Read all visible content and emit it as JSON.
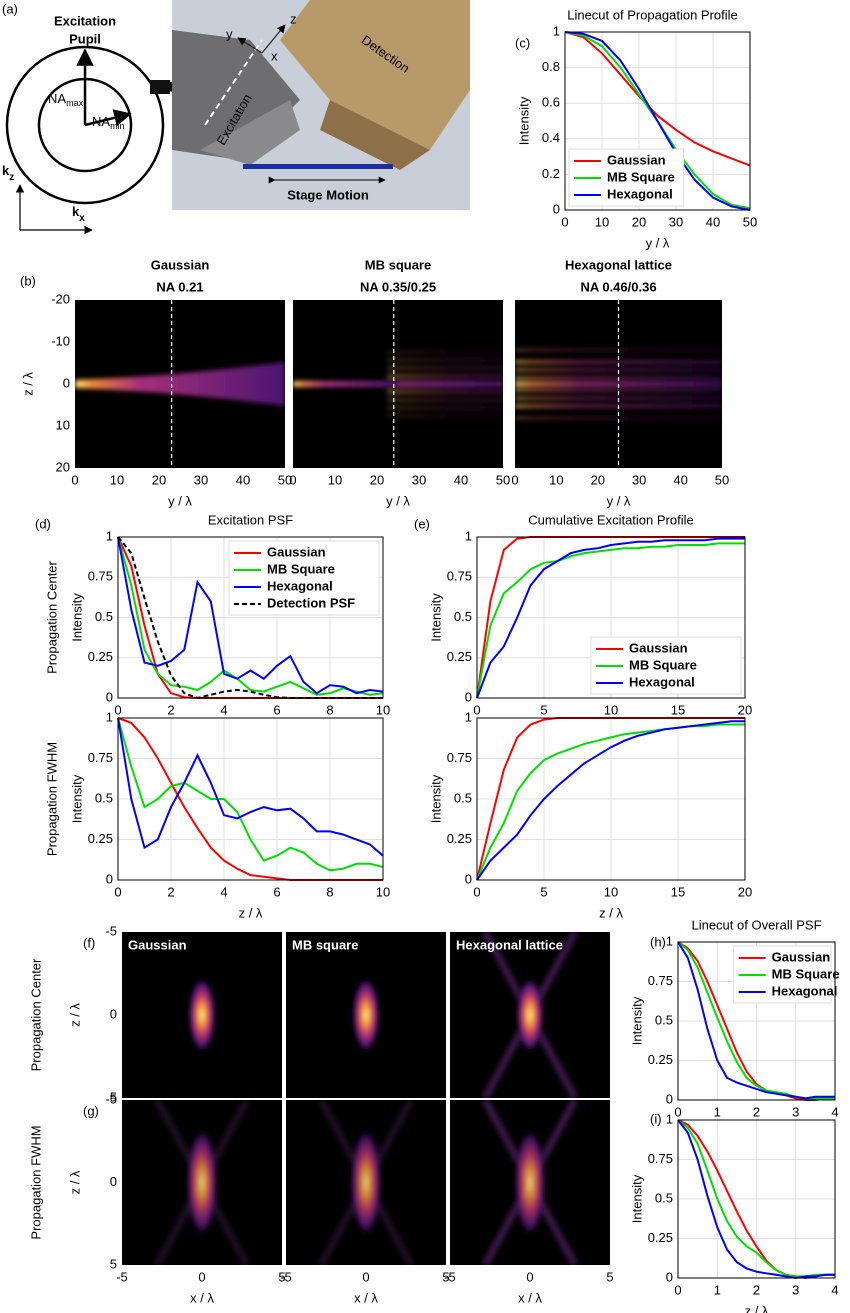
{
  "diagram": {
    "panel": "(a)",
    "pupil_title_1": "Excitation",
    "pupil_title_2": "Pupil",
    "na_max": {
      "base": "NA",
      "sub": "max"
    },
    "na_min": {
      "base": "NA",
      "sub": "min"
    },
    "kz": {
      "base": "k",
      "sub": "z"
    },
    "kx": {
      "base": "k",
      "sub": "x"
    },
    "axis_y": "y",
    "axis_z": "z",
    "axis_x": "x",
    "excitation": "Excitation",
    "detection": "Detection",
    "stage": "Stage Motion"
  },
  "chart_data": [
    {
      "type": "heatmap",
      "panel": "(b)",
      "title": "Gaussian",
      "subtitle": "NA 0.21",
      "xlabel": "y / λ",
      "ylabel": "z / λ",
      "xlim": [
        0,
        50
      ],
      "xticks": [
        0,
        10,
        20,
        30,
        40,
        50
      ],
      "ylim": [
        -20,
        20
      ],
      "yticks": [
        -20,
        -10,
        0,
        10,
        20
      ],
      "invert_y": true,
      "cut": 23
    },
    {
      "type": "heatmap",
      "title": "MB square",
      "subtitle": "NA 0.35/0.25",
      "xlabel": "y / λ",
      "xlim": [
        0,
        50
      ],
      "xticks": [
        0,
        10,
        20,
        30,
        40,
        50
      ],
      "ylim": [
        -20,
        20
      ],
      "invert_y": true,
      "cut": 24
    },
    {
      "type": "heatmap",
      "title": "Hexagonal lattice",
      "subtitle": "NA 0.46/0.36",
      "xlabel": "y / λ",
      "xlim": [
        0,
        50
      ],
      "xticks": [
        0,
        10,
        20,
        30,
        40,
        50
      ],
      "ylim": [
        -20,
        20
      ],
      "invert_y": true,
      "cut": 25
    },
    {
      "type": "line",
      "panel": "(c)",
      "title": "Linecut of Propagation Profile",
      "xlabel": "y / λ",
      "ylabel": "Intensity",
      "x": [
        0,
        5,
        10,
        15,
        20,
        25,
        30,
        35,
        40,
        45,
        50
      ],
      "xlim": [
        0,
        50
      ],
      "xticks": [
        0,
        10,
        20,
        30,
        40,
        50
      ],
      "ylim": [
        0,
        1
      ],
      "yticks": [
        0,
        0.2,
        0.4,
        0.6,
        0.8,
        1
      ],
      "grid": true,
      "legend": "lower left",
      "series": [
        {
          "name": "Gaussian",
          "color": "#ff0000",
          "values": [
            1,
            0.97,
            0.88,
            0.76,
            0.64,
            0.53,
            0.45,
            0.38,
            0.33,
            0.29,
            0.25
          ]
        },
        {
          "name": "MB Square",
          "color": "#00e000",
          "values": [
            1,
            0.98,
            0.92,
            0.8,
            0.65,
            0.5,
            0.34,
            0.2,
            0.09,
            0.03,
            0.01
          ]
        },
        {
          "name": "Hexagonal",
          "color": "#0000ff",
          "values": [
            1,
            0.99,
            0.95,
            0.84,
            0.68,
            0.5,
            0.32,
            0.17,
            0.07,
            0.02,
            0
          ]
        }
      ]
    },
    {
      "type": "line",
      "panel": "(d)",
      "title": "Excitation PSF",
      "row_label": "Propagation Center",
      "ylabel": "Intensity",
      "x": [
        0,
        0.5,
        1,
        1.5,
        2,
        2.5,
        3,
        3.5,
        4,
        4.5,
        5,
        5.5,
        6,
        6.5,
        7,
        7.5,
        8,
        8.5,
        9,
        9.5,
        10
      ],
      "xlim": [
        0,
        10
      ],
      "xticks": [
        0,
        2,
        4,
        6,
        8,
        10
      ],
      "ylim": [
        0,
        1
      ],
      "yticks": [
        0,
        0.25,
        0.5,
        0.75,
        1
      ],
      "grid": true,
      "legend": "upper right",
      "series": [
        {
          "name": "Gaussian",
          "color": "#ff0000",
          "values": [
            1,
            0.82,
            0.45,
            0.15,
            0.03,
            0.005,
            0,
            0,
            0,
            0,
            0,
            0,
            0,
            0,
            0,
            0,
            0,
            0,
            0,
            0,
            0
          ]
        },
        {
          "name": "MB Square",
          "color": "#00e000",
          "values": [
            1,
            0.7,
            0.3,
            0.15,
            0.08,
            0.07,
            0.05,
            0.1,
            0.17,
            0.12,
            0.05,
            0.04,
            0.07,
            0.1,
            0.06,
            0.02,
            0.03,
            0.06,
            0.04,
            0.02,
            0.03
          ]
        },
        {
          "name": "Hexagonal",
          "color": "#0000ff",
          "values": [
            1,
            0.55,
            0.22,
            0.2,
            0.23,
            0.3,
            0.72,
            0.6,
            0.15,
            0.12,
            0.17,
            0.12,
            0.2,
            0.26,
            0.1,
            0.03,
            0.08,
            0.07,
            0.03,
            0.05,
            0.04
          ]
        },
        {
          "name": "Detection PSF",
          "color": "#000000",
          "dashed": true,
          "values": [
            1,
            0.9,
            0.62,
            0.35,
            0.14,
            0.03,
            0,
            0.02,
            0.04,
            0.05,
            0.04,
            0.02,
            0.005,
            0,
            0,
            0,
            0,
            0,
            0,
            0,
            0
          ]
        }
      ]
    },
    {
      "type": "line",
      "row_label": "Propagation FWHM",
      "ylabel": "Intensity",
      "xlabel": "z / λ",
      "x": [
        0,
        0.5,
        1,
        1.5,
        2,
        2.5,
        3,
        3.5,
        4,
        4.5,
        5,
        5.5,
        6,
        6.5,
        7,
        7.5,
        8,
        8.5,
        9,
        9.5,
        10
      ],
      "xlim": [
        0,
        10
      ],
      "xticks": [
        0,
        2,
        4,
        6,
        8,
        10
      ],
      "ylim": [
        0,
        1
      ],
      "yticks": [
        0,
        0.25,
        0.5,
        0.75,
        1
      ],
      "grid": true,
      "series": [
        {
          "name": "Gaussian",
          "color": "#ff0000",
          "values": [
            1,
            0.97,
            0.88,
            0.75,
            0.6,
            0.45,
            0.32,
            0.2,
            0.12,
            0.07,
            0.03,
            0.02,
            0.01,
            0,
            0,
            0,
            0,
            0,
            0,
            0,
            0
          ]
        },
        {
          "name": "MB Square",
          "color": "#00e000",
          "values": [
            1,
            0.7,
            0.45,
            0.5,
            0.58,
            0.6,
            0.55,
            0.5,
            0.5,
            0.42,
            0.25,
            0.12,
            0.15,
            0.2,
            0.17,
            0.1,
            0.06,
            0.07,
            0.1,
            0.1,
            0.08
          ]
        },
        {
          "name": "Hexagonal",
          "color": "#0000ff",
          "values": [
            1,
            0.5,
            0.2,
            0.25,
            0.45,
            0.6,
            0.77,
            0.6,
            0.4,
            0.38,
            0.42,
            0.45,
            0.43,
            0.44,
            0.38,
            0.3,
            0.3,
            0.28,
            0.25,
            0.22,
            0.15
          ]
        }
      ]
    },
    {
      "type": "line",
      "panel": "(e)",
      "title": "Cumulative Excitation Profile",
      "ylabel": "Intensity",
      "x": [
        0,
        1,
        2,
        3,
        4,
        5,
        6,
        7,
        8,
        9,
        10,
        11,
        12,
        13,
        14,
        15,
        16,
        17,
        18,
        19,
        20
      ],
      "xlim": [
        0,
        20
      ],
      "xticks": [
        0,
        5,
        10,
        15,
        20
      ],
      "ylim": [
        0,
        1
      ],
      "yticks": [
        0,
        0.25,
        0.5,
        0.75,
        1
      ],
      "grid": true,
      "legend": "lower right",
      "series": [
        {
          "name": "Gaussian",
          "color": "#ff0000",
          "values": [
            0,
            0.6,
            0.92,
            0.99,
            1,
            1,
            1,
            1,
            1,
            1,
            1,
            1,
            1,
            1,
            1,
            1,
            1,
            1,
            1,
            1,
            1
          ]
        },
        {
          "name": "MB Square",
          "color": "#00e000",
          "values": [
            0,
            0.45,
            0.65,
            0.72,
            0.8,
            0.84,
            0.85,
            0.88,
            0.9,
            0.91,
            0.92,
            0.93,
            0.93,
            0.94,
            0.94,
            0.95,
            0.95,
            0.95,
            0.96,
            0.96,
            0.96
          ]
        },
        {
          "name": "Hexagonal",
          "color": "#0000ff",
          "values": [
            0,
            0.22,
            0.32,
            0.5,
            0.7,
            0.8,
            0.85,
            0.9,
            0.92,
            0.93,
            0.95,
            0.96,
            0.97,
            0.97,
            0.98,
            0.98,
            0.98,
            0.98,
            0.99,
            0.99,
            0.99
          ]
        }
      ]
    },
    {
      "type": "line",
      "ylabel": "Intensity",
      "xlabel": "z / λ",
      "x": [
        0,
        1,
        2,
        3,
        4,
        5,
        6,
        7,
        8,
        9,
        10,
        11,
        12,
        13,
        14,
        15,
        16,
        17,
        18,
        19,
        20
      ],
      "xlim": [
        0,
        20
      ],
      "xticks": [
        0,
        5,
        10,
        15,
        20
      ],
      "ylim": [
        0,
        1
      ],
      "yticks": [
        0,
        0.25,
        0.5,
        0.75,
        1
      ],
      "grid": true,
      "series": [
        {
          "name": "Gaussian",
          "color": "#ff0000",
          "values": [
            0,
            0.35,
            0.68,
            0.88,
            0.96,
            0.99,
            1,
            1,
            1,
            1,
            1,
            1,
            1,
            1,
            1,
            1,
            1,
            1,
            1,
            1,
            1
          ]
        },
        {
          "name": "MB Square",
          "color": "#00e000",
          "values": [
            0,
            0.2,
            0.35,
            0.55,
            0.66,
            0.74,
            0.78,
            0.81,
            0.84,
            0.86,
            0.88,
            0.9,
            0.91,
            0.92,
            0.93,
            0.94,
            0.95,
            0.95,
            0.96,
            0.96,
            0.96
          ]
        },
        {
          "name": "Hexagonal",
          "color": "#0000ff",
          "values": [
            0,
            0.12,
            0.2,
            0.28,
            0.4,
            0.5,
            0.58,
            0.65,
            0.72,
            0.77,
            0.82,
            0.86,
            0.89,
            0.91,
            0.93,
            0.94,
            0.95,
            0.96,
            0.97,
            0.98,
            0.98
          ]
        }
      ]
    },
    {
      "type": "heatmap",
      "panel": "(f)",
      "inset_label": "Gaussian",
      "row_label": "Propagation Center",
      "ylabel": "z / λ",
      "xlim": [
        -5,
        5
      ],
      "ylim": [
        -5,
        5
      ],
      "yticks": [
        -5,
        0,
        5
      ],
      "invert_y": true
    },
    {
      "type": "heatmap",
      "inset_label": "MB square",
      "xlim": [
        -5,
        5
      ],
      "ylim": [
        -5,
        5
      ],
      "invert_y": true
    },
    {
      "type": "heatmap",
      "inset_label": "Hexagonal lattice",
      "xlim": [
        -5,
        5
      ],
      "ylim": [
        -5,
        5
      ],
      "invert_y": true
    },
    {
      "type": "heatmap",
      "panel": "(g)",
      "row_label": "Propagation FWHM",
      "ylabel": "z / λ",
      "xlabel": "x / λ",
      "xlim": [
        -5,
        5
      ],
      "xticks": [
        -5,
        0,
        5
      ],
      "ylim": [
        -5,
        5
      ],
      "yticks": [
        -5,
        0,
        5
      ],
      "invert_y": true
    },
    {
      "type": "heatmap",
      "xlabel": "x / λ",
      "xlim": [
        -5,
        5
      ],
      "xticks": [
        -5,
        0,
        5
      ],
      "ylim": [
        -5,
        5
      ],
      "invert_y": true
    },
    {
      "type": "heatmap",
      "xlabel": "x / λ",
      "xlim": [
        -5,
        5
      ],
      "xticks": [
        -5,
        0,
        5
      ],
      "ylim": [
        -5,
        5
      ],
      "invert_y": true
    },
    {
      "type": "line",
      "panel": "(h)",
      "title": "Linecut of Overall PSF",
      "ylabel": "Intensity",
      "x": [
        0,
        0.25,
        0.5,
        0.75,
        1,
        1.25,
        1.5,
        1.75,
        2,
        2.25,
        2.5,
        2.75,
        3,
        3.25,
        3.5,
        3.75,
        4
      ],
      "xlim": [
        0,
        4
      ],
      "xticks": [
        0,
        1,
        2,
        3,
        4
      ],
      "ylim": [
        0,
        1
      ],
      "yticks": [
        0,
        0.25,
        0.5,
        0.75,
        1
      ],
      "grid": true,
      "legend": "upper right",
      "series": [
        {
          "name": "Gaussian",
          "color": "#ff0000",
          "values": [
            1,
            0.96,
            0.88,
            0.75,
            0.6,
            0.45,
            0.3,
            0.18,
            0.1,
            0.06,
            0.04,
            0.03,
            0.01,
            0,
            0,
            0.01,
            0.01
          ]
        },
        {
          "name": "MB Square",
          "color": "#00e000",
          "values": [
            1,
            0.95,
            0.84,
            0.68,
            0.52,
            0.37,
            0.24,
            0.14,
            0.09,
            0.06,
            0.05,
            0.04,
            0.02,
            0.01,
            0.01,
            0.01,
            0.01
          ]
        },
        {
          "name": "Hexagonal",
          "color": "#0000ff",
          "values": [
            1,
            0.9,
            0.7,
            0.45,
            0.25,
            0.14,
            0.11,
            0.09,
            0.07,
            0.05,
            0.04,
            0.03,
            0.02,
            0.01,
            0.02,
            0.02,
            0.02
          ]
        }
      ]
    },
    {
      "type": "line",
      "panel": "(i)",
      "ylabel": "Intensity",
      "xlabel": "z / λ",
      "x": [
        0,
        0.25,
        0.5,
        0.75,
        1,
        1.25,
        1.5,
        1.75,
        2,
        2.25,
        2.5,
        2.75,
        3,
        3.25,
        3.5,
        3.75,
        4
      ],
      "xlim": [
        0,
        4
      ],
      "xticks": [
        0,
        1,
        2,
        3,
        4
      ],
      "ylim": [
        0,
        1
      ],
      "yticks": [
        0,
        0.25,
        0.5,
        0.75,
        1
      ],
      "grid": true,
      "series": [
        {
          "name": "Gaussian",
          "color": "#ff0000",
          "values": [
            1,
            0.97,
            0.9,
            0.8,
            0.68,
            0.55,
            0.42,
            0.3,
            0.2,
            0.11,
            0.05,
            0.02,
            0.01,
            0,
            0.01,
            0.02,
            0.02
          ]
        },
        {
          "name": "MB Square",
          "color": "#00e000",
          "values": [
            1,
            0.95,
            0.85,
            0.68,
            0.5,
            0.36,
            0.26,
            0.2,
            0.16,
            0.1,
            0.05,
            0.02,
            0.01,
            0.01,
            0.02,
            0.02,
            0.02
          ]
        },
        {
          "name": "Hexagonal",
          "color": "#0000ff",
          "values": [
            1,
            0.92,
            0.75,
            0.52,
            0.32,
            0.18,
            0.1,
            0.06,
            0.04,
            0.03,
            0.02,
            0.01,
            0,
            0.01,
            0.01,
            0.02,
            0.02
          ]
        }
      ]
    }
  ]
}
